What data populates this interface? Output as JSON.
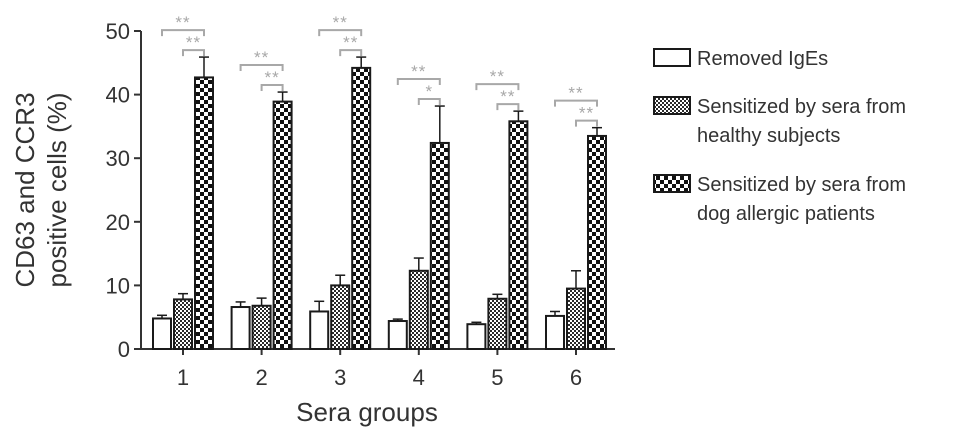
{
  "chart_data": {
    "type": "bar",
    "categories": [
      "1",
      "2",
      "3",
      "4",
      "5",
      "6"
    ],
    "xlabel": "Sera groups",
    "ylabel_lines": [
      "CD63 and CCR3",
      "positive cells (%)"
    ],
    "ylim": [
      0,
      50
    ],
    "yticks": [
      0,
      10,
      20,
      30,
      40,
      50
    ],
    "grid": false,
    "legend_position": "right",
    "series": [
      {
        "name": "Removed IgEs",
        "legend_lines": [
          "Removed IgEs"
        ],
        "pattern": "blank",
        "values": [
          4.8,
          6.6,
          5.9,
          4.4,
          3.9,
          5.2
        ],
        "errors": [
          0.5,
          0.8,
          1.6,
          0.3,
          0.3,
          0.7
        ]
      },
      {
        "name": "Sensitized by sera from healthy subjects",
        "legend_lines": [
          "Sensitized by sera from",
          "healthy subjects"
        ],
        "pattern": "fine-check",
        "values": [
          7.8,
          6.8,
          10.0,
          12.3,
          7.9,
          9.5
        ],
        "errors": [
          0.9,
          1.2,
          1.6,
          2.0,
          0.7,
          2.8
        ]
      },
      {
        "name": "Sensitized by sera from dog allergic patients",
        "legend_lines": [
          "Sensitized by sera from",
          "dog allergic patients"
        ],
        "pattern": "coarse-check",
        "values": [
          42.7,
          38.9,
          44.2,
          32.4,
          35.8,
          33.5
        ],
        "errors": [
          3.2,
          1.5,
          1.7,
          5.8,
          1.6,
          1.3
        ]
      }
    ],
    "significance": [
      {
        "group": "1",
        "outer": "**",
        "inner": "**"
      },
      {
        "group": "2",
        "outer": "**",
        "inner": "**"
      },
      {
        "group": "3",
        "outer": "**",
        "inner": "**"
      },
      {
        "group": "4",
        "outer": "**",
        "inner": "*"
      },
      {
        "group": "5",
        "outer": "**",
        "inner": "**"
      },
      {
        "group": "6",
        "outer": "**",
        "inner": "**"
      }
    ],
    "colors": {
      "bar_stroke": "#1a1a1a",
      "axis": "#333333",
      "text": "#333333",
      "significance": "#a8a8a8"
    }
  }
}
